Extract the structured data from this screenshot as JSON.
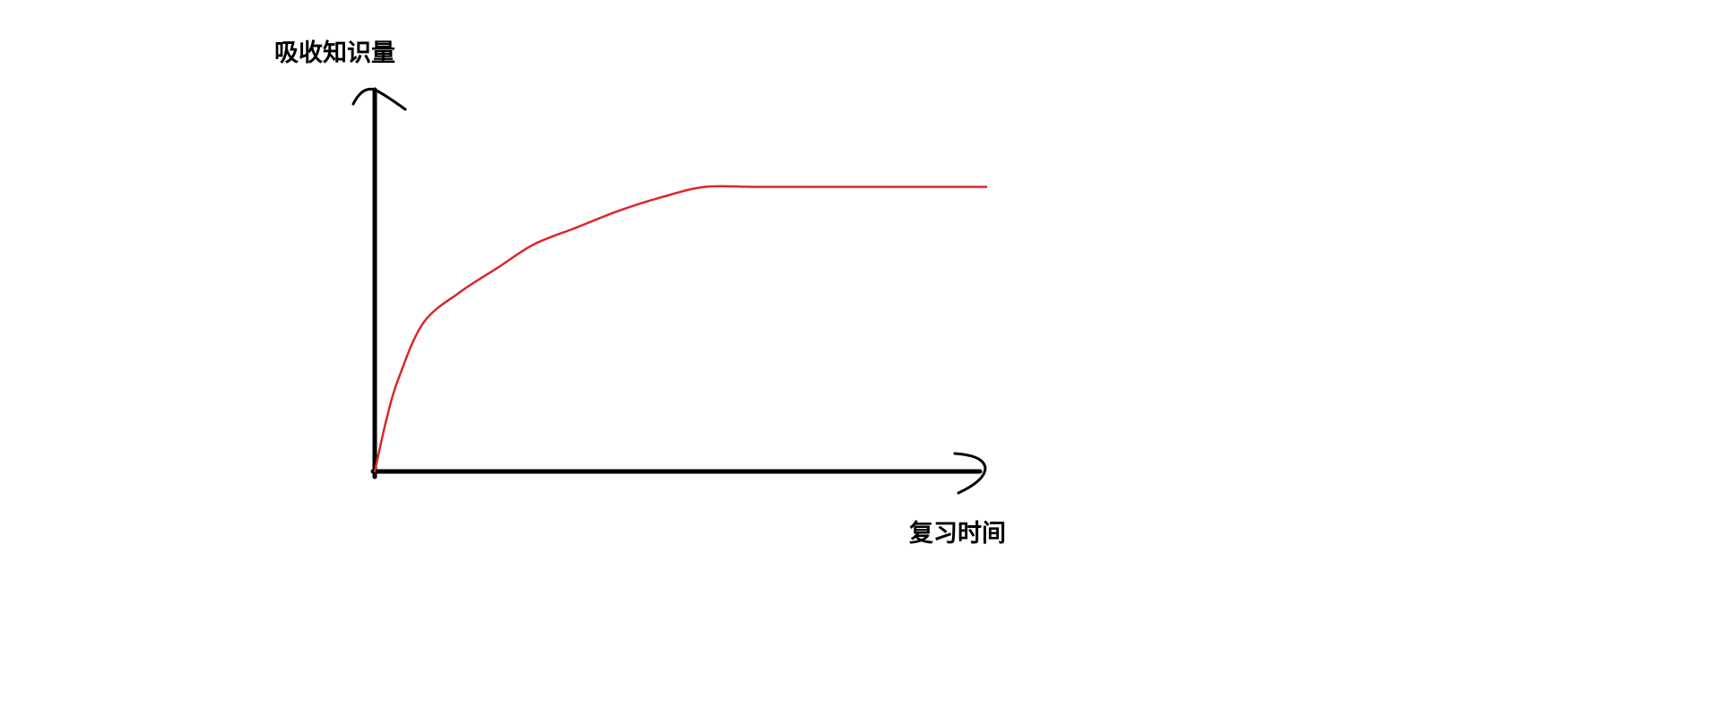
{
  "chart_data": {
    "type": "line",
    "title": "",
    "xlabel": "复习时间",
    "ylabel": "吸收知识量",
    "xlim": [
      0,
      1
    ],
    "ylim": [
      0,
      1
    ],
    "grid": false,
    "legend": "none",
    "axis_color": "#000000",
    "series": [
      {
        "color": "#d9272e",
        "x": [
          0,
          0.02,
          0.04,
          0.08,
          0.14,
          0.2,
          0.26,
          0.33,
          0.4,
          0.47,
          0.54,
          0.62,
          0.72,
          0.85,
          1.0
        ],
        "y": [
          0,
          0.16,
          0.28,
          0.44,
          0.53,
          0.6,
          0.67,
          0.72,
          0.77,
          0.81,
          0.84,
          0.84,
          0.84,
          0.84,
          0.84
        ]
      }
    ]
  }
}
